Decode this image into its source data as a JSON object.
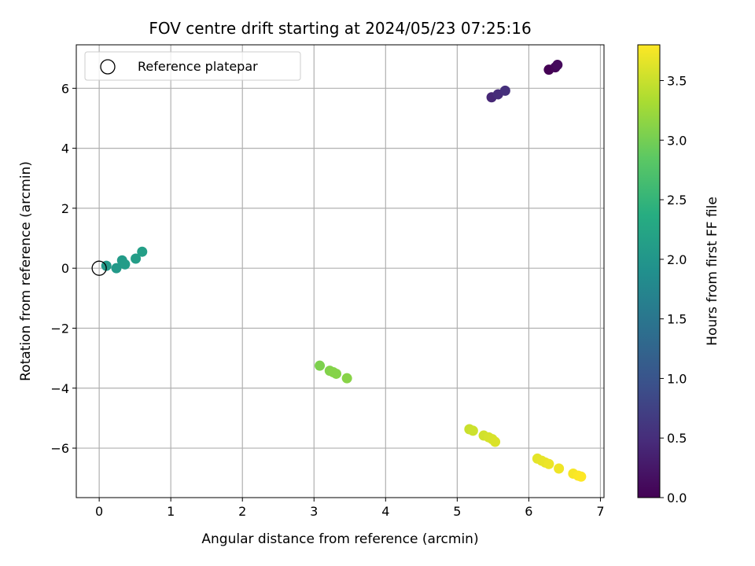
{
  "chart_data": {
    "type": "scatter",
    "title": "FOV centre drift starting at 2024/05/23 07:25:16",
    "xlabel": "Angular distance from reference (arcmin)",
    "ylabel": "Rotation from reference (arcmin)",
    "xlim": [
      -0.32,
      7.05
    ],
    "ylim": [
      -7.65,
      7.45
    ],
    "xticks": [
      0,
      1,
      2,
      3,
      4,
      5,
      6,
      7
    ],
    "yticks": [
      -6,
      -4,
      -2,
      0,
      2,
      4,
      6
    ],
    "grid": true,
    "legend": {
      "placement": "top-left",
      "entries": [
        "Reference platepar"
      ]
    },
    "reference_point": {
      "x": 0,
      "y": 0,
      "label": "Reference platepar"
    },
    "colorbar": {
      "label": "Hours from first FF file",
      "range": [
        0.0,
        3.8
      ],
      "ticks": [
        0.0,
        0.5,
        1.0,
        1.5,
        2.0,
        2.5,
        3.0,
        3.5
      ],
      "colormap": "viridis"
    },
    "points": [
      {
        "x": 6.28,
        "y": 6.62,
        "c": 0.0
      },
      {
        "x": 6.37,
        "y": 6.7,
        "c": 0.05
      },
      {
        "x": 6.4,
        "y": 6.78,
        "c": 0.1
      },
      {
        "x": 5.48,
        "y": 5.7,
        "c": 0.42
      },
      {
        "x": 5.57,
        "y": 5.8,
        "c": 0.48
      },
      {
        "x": 5.67,
        "y": 5.92,
        "c": 0.52
      },
      {
        "x": 0.1,
        "y": 0.08,
        "c": 2.05
      },
      {
        "x": 0.24,
        "y": 0.0,
        "c": 2.05
      },
      {
        "x": 0.32,
        "y": 0.26,
        "c": 2.08
      },
      {
        "x": 0.36,
        "y": 0.13,
        "c": 2.1
      },
      {
        "x": 0.51,
        "y": 0.32,
        "c": 2.12
      },
      {
        "x": 0.6,
        "y": 0.55,
        "c": 2.15
      },
      {
        "x": 3.08,
        "y": -3.25,
        "c": 3.05
      },
      {
        "x": 3.22,
        "y": -3.42,
        "c": 3.08
      },
      {
        "x": 3.27,
        "y": -3.47,
        "c": 3.1
      },
      {
        "x": 3.31,
        "y": -3.52,
        "c": 3.1
      },
      {
        "x": 3.46,
        "y": -3.67,
        "c": 3.12
      },
      {
        "x": 5.17,
        "y": -5.37,
        "c": 3.5
      },
      {
        "x": 5.22,
        "y": -5.42,
        "c": 3.52
      },
      {
        "x": 5.37,
        "y": -5.58,
        "c": 3.55
      },
      {
        "x": 5.44,
        "y": -5.64,
        "c": 3.57
      },
      {
        "x": 5.49,
        "y": -5.7,
        "c": 3.58
      },
      {
        "x": 5.53,
        "y": -5.79,
        "c": 3.6
      },
      {
        "x": 6.12,
        "y": -6.35,
        "c": 3.65
      },
      {
        "x": 6.18,
        "y": -6.42,
        "c": 3.67
      },
      {
        "x": 6.23,
        "y": -6.48,
        "c": 3.68
      },
      {
        "x": 6.28,
        "y": -6.53,
        "c": 3.7
      },
      {
        "x": 6.42,
        "y": -6.68,
        "c": 3.72
      },
      {
        "x": 6.62,
        "y": -6.85,
        "c": 3.76
      },
      {
        "x": 6.69,
        "y": -6.92,
        "c": 3.78
      },
      {
        "x": 6.73,
        "y": -6.95,
        "c": 3.8
      }
    ]
  }
}
